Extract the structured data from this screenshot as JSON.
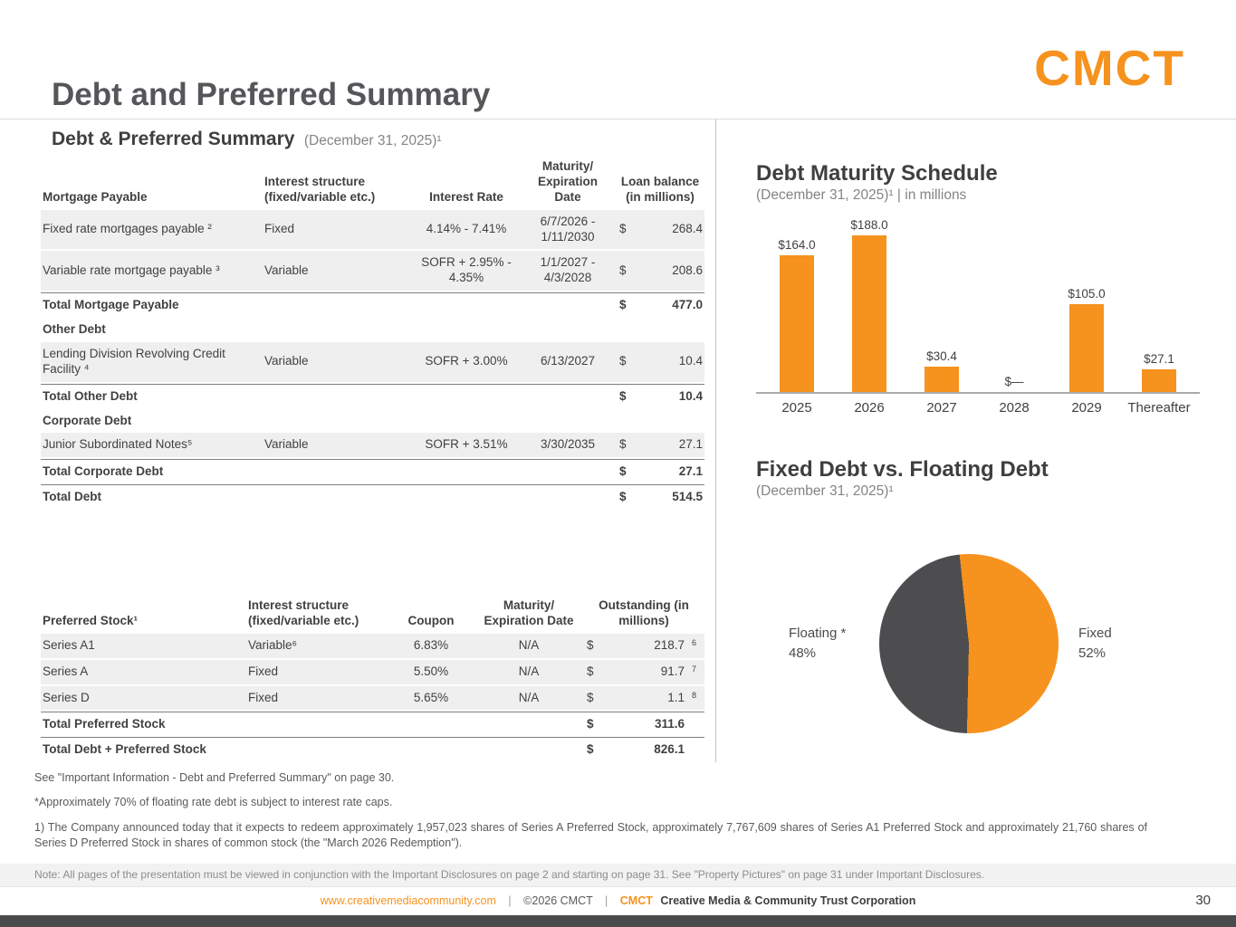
{
  "header": {
    "title": "Debt and Preferred Summary",
    "logo_text": "CMCT"
  },
  "left": {
    "heading": "Debt & Preferred Summary",
    "heading_date": "(December 31, 2025)¹",
    "debt_table": {
      "headers": {
        "name": "Mortgage Payable",
        "structure": "Interest structure (fixed/variable etc.)",
        "rate": "Interest Rate",
        "maturity": "Maturity/ Expiration Date",
        "balance": "Loan balance (in millions)"
      },
      "rows": [
        {
          "name": "Fixed rate mortgages payable ²",
          "structure": "Fixed",
          "rate": "4.14% - 7.41%",
          "maturity": "6/7/2026 - 1/11/2030",
          "dollar": "$",
          "amount": "268.4"
        },
        {
          "name": "Variable rate mortgage payable ³",
          "structure": "Variable",
          "rate": "SOFR + 2.95% - 4.35%",
          "maturity": "1/1/2027 - 4/3/2028",
          "dollar": "$",
          "amount": "208.6"
        },
        {
          "name": "Total Mortgage Payable",
          "dollar": "$",
          "amount": "477.0"
        },
        {
          "name": "Other Debt"
        },
        {
          "name": "Lending Division Revolving Credit Facility ⁴",
          "structure": "Variable",
          "rate": "SOFR + 3.00%",
          "maturity": "6/13/2027",
          "dollar": "$",
          "amount": "10.4"
        },
        {
          "name": "Total Other Debt",
          "dollar": "$",
          "amount": "10.4"
        },
        {
          "name": "Corporate Debt"
        },
        {
          "name": "Junior Subordinated Notes⁵",
          "structure": "Variable",
          "rate": "SOFR + 3.51%",
          "maturity": "3/30/2035",
          "dollar": "$",
          "amount": "27.1"
        },
        {
          "name": "Total Corporate Debt",
          "dollar": "$",
          "amount": "27.1"
        },
        {
          "name": "Total Debt",
          "dollar": "$",
          "amount": "514.5"
        }
      ]
    },
    "preferred_table": {
      "headers": {
        "name": "Preferred Stock¹",
        "structure": "Interest structure (fixed/variable etc.)",
        "coupon": "Coupon",
        "maturity": "Maturity/ Expiration Date",
        "outstanding": "Outstanding (in millions)"
      },
      "rows": [
        {
          "name": "Series A1",
          "structure": "Variable⁶",
          "coupon": "6.83%",
          "maturity": "N/A",
          "dollar": "$",
          "amount": "218.7",
          "sup": "6"
        },
        {
          "name": "Series A",
          "structure": "Fixed",
          "coupon": "5.50%",
          "maturity": "N/A",
          "dollar": "$",
          "amount": "91.7",
          "sup": "7"
        },
        {
          "name": "Series D",
          "structure": "Fixed",
          "coupon": "5.65%",
          "maturity": "N/A",
          "dollar": "$",
          "amount": "1.1",
          "sup": "8"
        },
        {
          "name": "Total Preferred Stock",
          "dollar": "$",
          "amount": "311.6"
        },
        {
          "name": "Total Debt + Preferred Stock",
          "dollar": "$",
          "amount": "826.1"
        }
      ]
    }
  },
  "chart_data": [
    {
      "type": "bar",
      "title": "Debt Maturity Schedule",
      "subtitle": "(December 31, 2025)¹ | in millions",
      "categories": [
        "2025",
        "2026",
        "2027",
        "2028",
        "2029",
        "Thereafter"
      ],
      "values": [
        164.0,
        188.0,
        30.4,
        0,
        105.0,
        27.1
      ],
      "value_labels": [
        "$164.0",
        "$188.0",
        "$30.4",
        "$—",
        "$105.0",
        "$27.1"
      ],
      "bar_color": "#F6921E",
      "xlabel": "",
      "ylabel": "",
      "ylim": [
        0,
        188
      ],
      "grid": false,
      "legend": false
    },
    {
      "type": "pie",
      "title": "Fixed Debt vs. Floating Debt",
      "subtitle": "(December 31, 2025)¹",
      "slices": [
        {
          "label": "Fixed",
          "pct": 52,
          "pct_label": "52%",
          "color": "#F6921E"
        },
        {
          "label": "Floating *",
          "pct": 48,
          "pct_label": "48%",
          "color": "#4D4D4F"
        }
      ],
      "legend": false
    }
  ],
  "footnotes": [
    "See \"Important Information - Debt and Preferred Summary\" on page 30.",
    "*Approximately 70% of floating rate debt is subject to interest rate caps.",
    "1) The Company announced today that it expects to redeem approximately 1,957,023 shares of Series A Preferred Stock, approximately 7,767,609 shares of Series A1 Preferred Stock and approximately 21,760 shares of Series D Preferred Stock in shares of common stock (the \"March 2026 Redemption\")."
  ],
  "note_bar": "Note: All pages of the presentation must be viewed in conjunction with the Important Disclosures on page 2 and starting on page 31. See \"Property Pictures\" on page 31 under Important Disclosures.",
  "footer": {
    "url": "www.creativemediacommunity.com",
    "separator": "|",
    "copyright": "©2026 CMCT",
    "brand": "CMCT",
    "company": "Creative Media & Community Trust Corporation",
    "page_number": "30"
  },
  "colors": {
    "accent_orange": "#F6921E",
    "pie_dark": "#4D4D4F",
    "row_shade": "#EFEFEF"
  }
}
